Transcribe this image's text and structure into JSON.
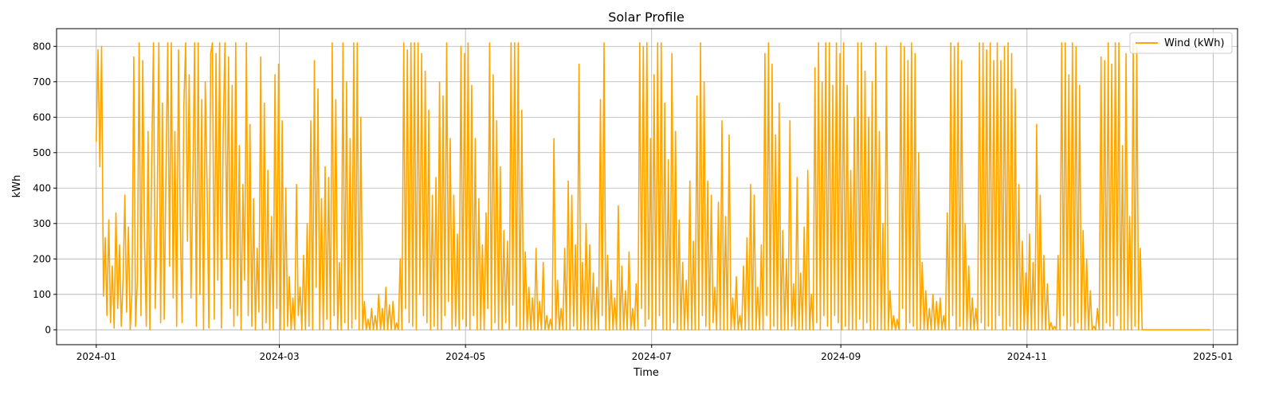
{
  "chart_data": {
    "type": "line",
    "title": "Solar Profile",
    "xlabel": "Time",
    "ylabel": "kWh",
    "x_range": [
      "2023-12-19",
      "2025-01-09"
    ],
    "ylim": [
      -42,
      850
    ],
    "grid": true,
    "legend_position": "top-right",
    "x_ticks": [
      "2024-01",
      "2024-03",
      "2024-05",
      "2024-07",
      "2024-09",
      "2024-11",
      "2025-01"
    ],
    "y_ticks": [
      0,
      100,
      200,
      300,
      400,
      500,
      600,
      700,
      800
    ],
    "series": [
      {
        "name": "Wind (kWh)",
        "color": "#ffa500",
        "start": "2024-01-01",
        "end": "2024-12-31",
        "samples_per_day": 4,
        "note_values": "Quarter-day samples; values estimated from the plotted line. Values are 0 from 2024-12-15 to 2024-12-31.",
        "values": [
          530,
          790,
          460,
          800,
          95,
          260,
          40,
          310,
          20,
          180,
          5,
          330,
          60,
          240,
          10,
          140,
          380,
          50,
          290,
          0,
          110,
          770,
          10,
          140,
          810,
          40,
          760,
          250,
          10,
          560,
          0,
          470,
          810,
          60,
          300,
          810,
          20,
          640,
          30,
          450,
          810,
          180,
          810,
          90,
          560,
          10,
          790,
          300,
          20,
          630,
          810,
          250,
          720,
          90,
          400,
          810,
          10,
          810,
          100,
          650,
          0,
          700,
          400,
          5,
          780,
          810,
          30,
          780,
          140,
          810,
          5,
          560,
          810,
          200,
          770,
          60,
          690,
          10,
          810,
          40,
          520,
          0,
          410,
          140,
          810,
          40,
          580,
          10,
          370,
          0,
          230,
          50,
          770,
          0,
          640,
          20,
          450,
          0,
          320,
          0,
          720,
          60,
          750,
          0,
          590,
          0,
          400,
          10,
          150,
          0,
          90,
          0,
          410,
          40,
          120,
          0,
          210,
          0,
          300,
          10,
          590,
          0,
          760,
          120,
          680,
          0,
          370,
          0,
          460,
          30,
          430,
          0,
          810,
          40,
          650,
          0,
          190,
          0,
          810,
          20,
          700,
          0,
          540,
          5,
          810,
          30,
          810,
          0,
          600,
          0,
          80,
          0,
          30,
          0,
          60,
          0,
          40,
          0,
          100,
          0,
          60,
          0,
          120,
          0,
          70,
          0,
          80,
          0,
          20,
          0,
          200,
          0,
          810,
          60,
          790,
          20,
          810,
          10,
          810,
          0,
          810,
          100,
          780,
          40,
          730,
          20,
          620,
          0,
          380,
          10,
          430,
          0,
          700,
          0,
          660,
          40,
          810,
          80,
          540,
          0,
          380,
          10,
          270,
          0,
          800,
          30,
          780,
          10,
          810,
          0,
          690,
          40,
          540,
          0,
          370,
          0,
          240,
          0,
          330,
          60,
          810,
          0,
          720,
          20,
          590,
          0,
          460,
          0,
          280,
          20,
          250,
          0,
          810,
          70,
          810,
          10,
          810,
          0,
          620,
          0,
          220,
          0,
          120,
          0,
          90,
          0,
          230,
          0,
          80,
          0,
          190,
          0,
          40,
          0,
          30,
          0,
          540,
          0,
          140,
          0,
          60,
          0,
          230,
          0,
          420,
          0,
          380,
          10,
          240,
          0,
          750,
          0,
          190,
          0,
          300,
          0,
          240,
          0,
          160,
          0,
          120,
          0,
          650,
          40,
          810,
          0,
          210,
          0,
          140,
          0,
          90,
          0,
          350,
          0,
          180,
          0,
          110,
          0,
          220,
          0,
          60,
          0,
          130,
          0,
          810,
          60,
          800,
          10,
          810,
          30,
          540,
          0,
          720,
          0,
          810,
          40,
          810,
          0,
          640,
          0,
          480,
          0,
          780,
          20,
          560,
          0,
          310,
          0,
          190,
          0,
          140,
          0,
          420,
          0,
          250,
          0,
          660,
          0,
          810,
          40,
          700,
          10,
          420,
          0,
          380,
          20,
          120,
          0,
          360,
          0,
          590,
          0,
          320,
          0,
          550,
          0,
          90,
          0,
          150,
          0,
          40,
          0,
          180,
          0,
          260,
          0,
          410,
          0,
          380,
          0,
          120,
          0,
          240,
          0,
          780,
          40,
          810,
          0,
          750,
          10,
          550,
          0,
          640,
          0,
          280,
          0,
          200,
          0,
          590,
          10,
          130,
          0,
          430,
          0,
          160,
          0,
          290,
          0,
          450,
          0,
          100,
          0,
          740,
          20,
          810,
          0,
          700,
          40,
          860,
          10,
          810,
          0,
          690,
          40,
          810,
          20,
          780,
          0,
          810,
          10,
          690,
          0,
          450,
          0,
          600,
          0,
          810,
          30,
          810,
          0,
          730,
          20,
          600,
          0,
          700,
          0,
          810,
          0,
          560,
          0,
          300,
          0,
          800,
          0,
          110,
          0,
          40,
          0,
          30,
          0,
          810,
          60,
          800,
          0,
          760,
          20,
          810,
          10,
          780,
          0,
          500,
          0,
          190,
          0,
          110,
          0,
          60,
          0,
          100,
          0,
          80,
          0,
          90,
          0,
          40,
          0,
          330,
          0,
          810,
          40,
          800,
          0,
          810,
          10,
          760,
          0,
          300,
          0,
          180,
          0,
          90,
          0,
          60,
          0,
          810,
          20,
          810,
          0,
          790,
          10,
          810,
          0,
          760,
          0,
          810,
          40,
          760,
          0,
          800,
          0,
          810,
          10,
          780,
          0,
          680,
          0,
          410,
          0,
          250,
          0,
          160,
          0,
          270,
          0,
          190,
          0,
          580,
          0,
          380,
          0,
          210,
          0,
          130,
          0,
          20,
          0,
          10,
          0,
          210,
          0,
          810,
          40,
          810,
          0,
          720,
          10,
          810,
          0,
          800,
          20,
          690,
          0,
          280,
          0,
          200,
          0,
          110,
          0,
          10,
          0,
          60,
          0,
          770,
          0,
          760,
          20,
          810,
          10,
          750,
          0,
          810,
          40,
          810,
          0,
          520,
          0,
          780,
          0,
          320,
          0,
          810,
          10,
          800,
          0,
          230,
          0,
          0,
          0,
          0,
          0,
          0,
          0,
          0,
          0,
          0,
          0,
          0,
          0,
          0,
          0,
          0,
          0,
          0,
          0,
          0,
          0,
          0,
          0,
          0,
          0,
          0,
          0,
          0,
          0,
          0,
          0,
          0,
          0,
          0,
          0,
          0,
          0,
          0,
          0
        ]
      }
    ]
  }
}
